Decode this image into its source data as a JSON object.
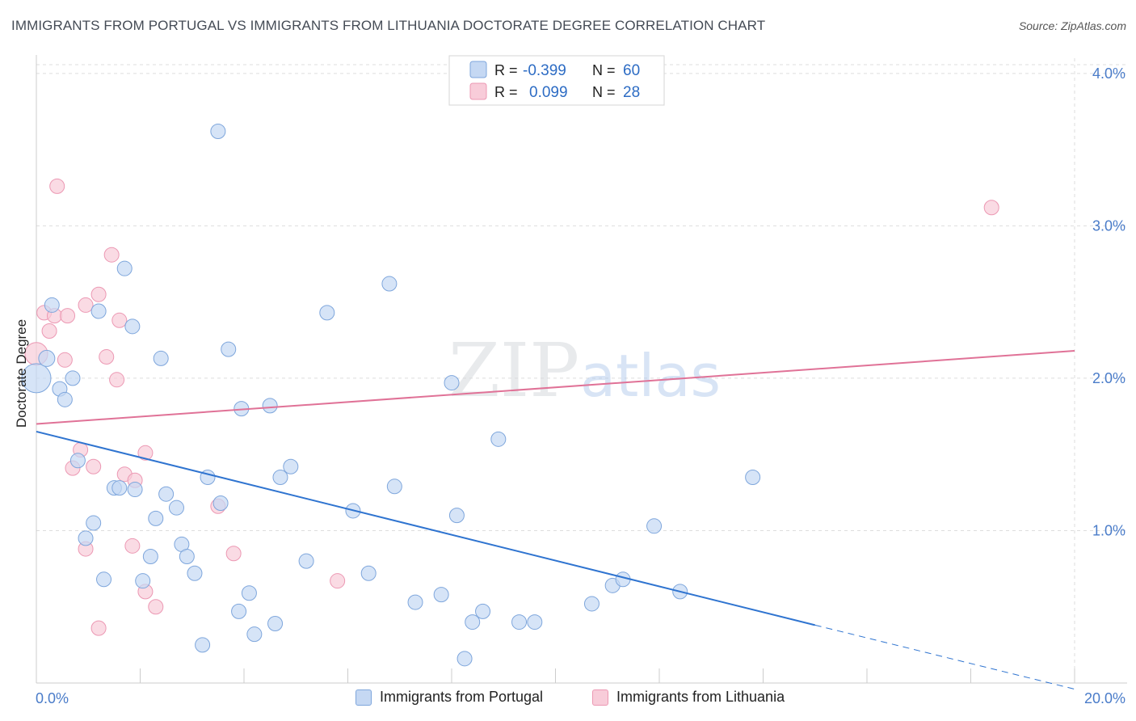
{
  "title": "IMMIGRANTS FROM PORTUGAL VS IMMIGRANTS FROM LITHUANIA DOCTORATE DEGREE CORRELATION CHART",
  "source": "Source: ZipAtlas.com",
  "watermark": {
    "zip": "ZIP",
    "atlas": "atlas"
  },
  "colors": {
    "blue_fill": "#c5d8f3",
    "blue_stroke": "#7ea6dc",
    "blue_line": "#2f74d0",
    "pink_fill": "#f8ccd9",
    "pink_stroke": "#ec98b3",
    "pink_line": "#e07297",
    "grid": "#dddddd",
    "axis_text": "#4a7cc9"
  },
  "legend": {
    "rows": [
      {
        "r_label": "R =",
        "r_value": "-0.399",
        "n_label": "N =",
        "n_value": "60"
      },
      {
        "r_label": "R =",
        "r_value": "0.099",
        "n_label": "N =",
        "n_value": "28"
      }
    ]
  },
  "bottom_legend": [
    "Immigrants from Portugal",
    "Immigrants from Lithuania"
  ],
  "chart_data": {
    "type": "scatter",
    "ylabel": "Doctorate Degree",
    "xlim": [
      0,
      20
    ],
    "ylim": [
      0,
      4.1
    ],
    "x_tick_labels": [
      "0.0%",
      "20.0%"
    ],
    "y_tick_labels": [
      "1.0%",
      "2.0%",
      "3.0%",
      "4.0%"
    ],
    "y_ticks": [
      1,
      2,
      3,
      4
    ],
    "series": [
      {
        "name": "Immigrants from Portugal",
        "trend": {
          "x0": 0,
          "y0": 1.65,
          "x1": 15,
          "y1": 0.38,
          "dash_to_x": 20,
          "dash_to_y": -0.04
        },
        "points": [
          [
            0.0,
            2.0,
            18
          ],
          [
            0.2,
            2.13,
            10
          ],
          [
            0.3,
            2.48,
            9
          ],
          [
            0.45,
            1.93,
            9
          ],
          [
            0.55,
            1.86,
            9
          ],
          [
            0.7,
            2.0,
            9
          ],
          [
            0.8,
            1.46,
            9
          ],
          [
            0.95,
            0.95,
            9
          ],
          [
            1.1,
            1.05,
            9
          ],
          [
            1.2,
            2.44,
            9
          ],
          [
            1.3,
            0.68,
            9
          ],
          [
            1.5,
            1.28,
            9
          ],
          [
            1.6,
            1.28,
            9
          ],
          [
            1.7,
            2.72,
            9
          ],
          [
            1.85,
            2.34,
            9
          ],
          [
            1.9,
            1.27,
            9
          ],
          [
            2.05,
            0.67,
            9
          ],
          [
            2.2,
            0.83,
            9
          ],
          [
            2.3,
            1.08,
            9
          ],
          [
            2.4,
            2.13,
            9
          ],
          [
            2.5,
            1.24,
            9
          ],
          [
            2.7,
            1.15,
            9
          ],
          [
            2.8,
            0.91,
            9
          ],
          [
            2.9,
            0.83,
            9
          ],
          [
            3.05,
            0.72,
            9
          ],
          [
            3.2,
            0.25,
            9
          ],
          [
            3.3,
            1.35,
            9
          ],
          [
            3.5,
            3.62,
            9
          ],
          [
            3.55,
            1.18,
            9
          ],
          [
            3.7,
            2.19,
            9
          ],
          [
            3.9,
            0.47,
            9
          ],
          [
            3.95,
            1.8,
            9
          ],
          [
            4.1,
            0.59,
            9
          ],
          [
            4.2,
            0.32,
            9
          ],
          [
            4.5,
            1.82,
            9
          ],
          [
            4.6,
            0.39,
            9
          ],
          [
            4.7,
            1.35,
            9
          ],
          [
            4.9,
            1.42,
            9
          ],
          [
            5.2,
            0.8,
            9
          ],
          [
            5.6,
            2.43,
            9
          ],
          [
            6.1,
            1.13,
            9
          ],
          [
            6.4,
            0.72,
            9
          ],
          [
            6.8,
            2.62,
            9
          ],
          [
            6.9,
            1.29,
            9
          ],
          [
            7.3,
            0.53,
            9
          ],
          [
            7.8,
            0.58,
            9
          ],
          [
            8.0,
            1.97,
            9
          ],
          [
            8.1,
            1.1,
            9
          ],
          [
            8.25,
            0.16,
            9
          ],
          [
            8.4,
            0.4,
            9
          ],
          [
            8.6,
            0.47,
            9
          ],
          [
            8.9,
            1.6,
            9
          ],
          [
            9.3,
            0.4,
            9
          ],
          [
            9.6,
            0.4,
            9
          ],
          [
            10.7,
            0.52,
            9
          ],
          [
            11.1,
            0.64,
            9
          ],
          [
            11.3,
            0.68,
            9
          ],
          [
            11.9,
            1.03,
            9
          ],
          [
            12.4,
            0.6,
            9
          ],
          [
            13.8,
            1.35,
            9
          ]
        ]
      },
      {
        "name": "Immigrants from Lithuania",
        "trend": {
          "x0": 0,
          "y0": 1.7,
          "x1": 20,
          "y1": 2.18
        },
        "points": [
          [
            0.0,
            2.16,
            14
          ],
          [
            0.15,
            2.43,
            9
          ],
          [
            0.25,
            2.31,
            9
          ],
          [
            0.35,
            2.41,
            9
          ],
          [
            0.4,
            3.26,
            9
          ],
          [
            0.55,
            2.12,
            9
          ],
          [
            0.6,
            2.41,
            9
          ],
          [
            0.7,
            1.41,
            9
          ],
          [
            0.85,
            1.53,
            9
          ],
          [
            0.95,
            2.48,
            9
          ],
          [
            0.95,
            0.88,
            9
          ],
          [
            1.1,
            1.42,
            9
          ],
          [
            1.2,
            2.55,
            9
          ],
          [
            1.2,
            0.36,
            9
          ],
          [
            1.35,
            2.14,
            9
          ],
          [
            1.45,
            2.81,
            9
          ],
          [
            1.55,
            1.99,
            9
          ],
          [
            1.6,
            2.38,
            9
          ],
          [
            1.7,
            1.37,
            9
          ],
          [
            1.85,
            0.9,
            9
          ],
          [
            1.9,
            1.33,
            9
          ],
          [
            2.1,
            1.51,
            9
          ],
          [
            2.1,
            0.6,
            9
          ],
          [
            2.3,
            0.5,
            9
          ],
          [
            3.5,
            1.16,
            9
          ],
          [
            3.8,
            0.85,
            9
          ],
          [
            5.8,
            0.67,
            9
          ],
          [
            18.4,
            3.12,
            9
          ]
        ]
      }
    ]
  }
}
